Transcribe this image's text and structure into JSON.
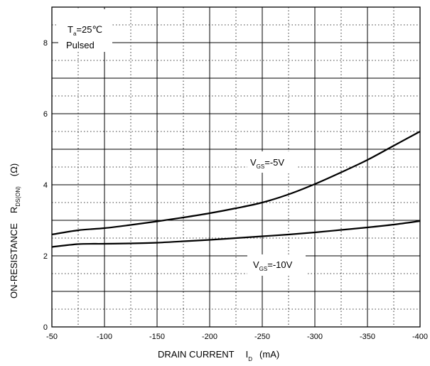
{
  "chart_data": {
    "type": "line",
    "x_ticks": [
      "-50",
      "-100",
      "-150",
      "-200",
      "-250",
      "-300",
      "-350",
      "-400"
    ],
    "y_ticks": [
      "0",
      "2",
      "4",
      "6",
      "8"
    ],
    "xlim": [
      -50,
      -400
    ],
    "ylim": [
      0,
      9
    ],
    "grid": true,
    "xlabel": {
      "main": "DRAIN CURRENT",
      "symbol": "I",
      "subscript": "D",
      "unit": "(mA)"
    },
    "ylabel": {
      "main": "ON-RESISTANCE",
      "symbol": "R",
      "subscript": "DS(ON)",
      "unit": "(Ω)"
    },
    "conditions": {
      "ta_symbol": "T",
      "ta_subscript": "a",
      "ta_value": "=25℃",
      "mode": "Pulsed"
    },
    "series": [
      {
        "name": "V_GS=-5V",
        "label": {
          "symbol": "V",
          "subscript": "GS",
          "value": "=-5V"
        },
        "x": [
          -50,
          -75,
          -100,
          -125,
          -150,
          -175,
          -200,
          -225,
          -250,
          -275,
          -300,
          -325,
          -350,
          -375,
          -400
        ],
        "y": [
          2.6,
          2.72,
          2.78,
          2.87,
          2.97,
          3.08,
          3.2,
          3.34,
          3.5,
          3.73,
          4.02,
          4.35,
          4.7,
          5.1,
          5.5
        ]
      },
      {
        "name": "V_GS=-10V",
        "label": {
          "symbol": "V",
          "subscript": "GS",
          "value": "=-10V"
        },
        "x": [
          -50,
          -75,
          -100,
          -125,
          -150,
          -175,
          -200,
          -225,
          -250,
          -275,
          -300,
          -325,
          -350,
          -375,
          -400
        ],
        "y": [
          2.25,
          2.33,
          2.34,
          2.35,
          2.37,
          2.41,
          2.45,
          2.5,
          2.55,
          2.6,
          2.66,
          2.73,
          2.8,
          2.88,
          2.98
        ]
      }
    ]
  }
}
